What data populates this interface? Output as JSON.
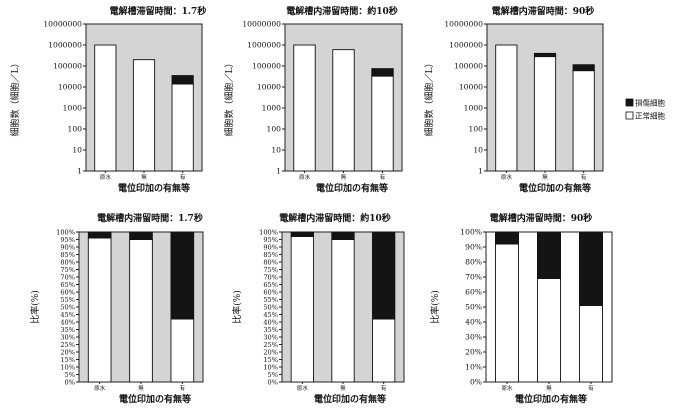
{
  "legend": {
    "damaged": "損傷細胞",
    "normal": "正常細胞"
  },
  "colors": {
    "plot_bg": "#d4d4d4",
    "bar_white": "#ffffff",
    "bar_black": "#141414"
  },
  "chart_data": [
    {
      "type": "bar",
      "scale": "log",
      "title": "電解槽滞留時間：1.7秒",
      "xlabel": "電位印加の有無等",
      "ylabel": "細胞数（細胞／L）",
      "ylim": [
        1,
        10000000
      ],
      "yticks": [
        "1",
        "10",
        "100",
        "1000",
        "10000",
        "100000",
        "1000000",
        "10000000"
      ],
      "categories": [
        "原水",
        "無",
        "有"
      ],
      "series": [
        {
          "name": "損傷細胞",
          "values": [
            0,
            0,
            21000
          ]
        },
        {
          "name": "正常細胞",
          "values": [
            1000000,
            200000,
            14000
          ]
        }
      ]
    },
    {
      "type": "bar",
      "scale": "log",
      "title": "電解槽内滞留時間：約10秒",
      "xlabel": "電位印加の有無等",
      "ylabel": "細胞数（細胞／L）",
      "ylim": [
        1,
        10000000
      ],
      "yticks": [
        "1",
        "10",
        "100",
        "1000",
        "10000",
        "100000",
        "1000000",
        "10000000"
      ],
      "categories": [
        "原水",
        "無",
        "有"
      ],
      "series": [
        {
          "name": "損傷細胞",
          "values": [
            0,
            0,
            42000
          ]
        },
        {
          "name": "正常細胞",
          "values": [
            1000000,
            600000,
            33000
          ]
        }
      ]
    },
    {
      "type": "bar",
      "scale": "log",
      "title": "電解槽内滞留時間：90秒",
      "xlabel": "電位印加の有無等",
      "ylabel": "細胞数（細胞／L）",
      "ylim": [
        1,
        10000000
      ],
      "yticks": [
        "1",
        "10",
        "100",
        "1000",
        "10000",
        "100000",
        "1000000",
        "10000000"
      ],
      "categories": [
        "原水",
        "無",
        "有"
      ],
      "series": [
        {
          "name": "損傷細胞",
          "values": [
            0,
            120000,
            55000
          ]
        },
        {
          "name": "正常細胞",
          "values": [
            1000000,
            280000,
            60000
          ]
        }
      ]
    },
    {
      "type": "bar",
      "scale": "linear",
      "title": "電解槽内滞留時間：1.7秒",
      "xlabel": "電位印加の有無等",
      "ylabel": "比率(%)",
      "ylim": [
        0,
        100
      ],
      "yticks": [
        "0%",
        "5%",
        "10%",
        "15%",
        "20%",
        "25%",
        "30%",
        "35%",
        "40%",
        "45%",
        "50%",
        "55%",
        "60%",
        "65%",
        "70%",
        "75%",
        "80%",
        "85%",
        "90%",
        "95%",
        "100%"
      ],
      "categories": [
        "原水",
        "無",
        "有"
      ],
      "series": [
        {
          "name": "正常細胞",
          "values": [
            96,
            95,
            42
          ]
        },
        {
          "name": "損傷細胞",
          "values": [
            4,
            5,
            58
          ]
        }
      ]
    },
    {
      "type": "bar",
      "scale": "linear",
      "title": "電解槽内滞留時間：約10秒",
      "xlabel": "電位印加の有無等",
      "ylabel": "比率(%)",
      "ylim": [
        0,
        100
      ],
      "yticks": [
        "0%",
        "5%",
        "10%",
        "15%",
        "20%",
        "25%",
        "30%",
        "35%",
        "40%",
        "45%",
        "50%",
        "55%",
        "60%",
        "65%",
        "70%",
        "75%",
        "80%",
        "85%",
        "90%",
        "95%",
        "100%"
      ],
      "categories": [
        "原水",
        "無",
        "有"
      ],
      "series": [
        {
          "name": "正常細胞",
          "values": [
            97,
            95,
            42
          ]
        },
        {
          "name": "損傷細胞",
          "values": [
            3,
            5,
            58
          ]
        }
      ]
    },
    {
      "type": "bar",
      "scale": "linear",
      "title": "電解槽内滞留時間：90秒",
      "xlabel": "電位印加の有無等",
      "ylabel": "比率(%)",
      "ylim": [
        0,
        100
      ],
      "yticks": [
        "0%",
        "10%",
        "20%",
        "30%",
        "40%",
        "50%",
        "60%",
        "70%",
        "80%",
        "90%",
        "100%"
      ],
      "categories": [
        "原水",
        "無",
        "有"
      ],
      "series": [
        {
          "name": "正常細胞",
          "values": [
            92,
            69,
            51
          ]
        },
        {
          "name": "損傷細胞",
          "values": [
            8,
            31,
            49
          ]
        }
      ]
    }
  ]
}
